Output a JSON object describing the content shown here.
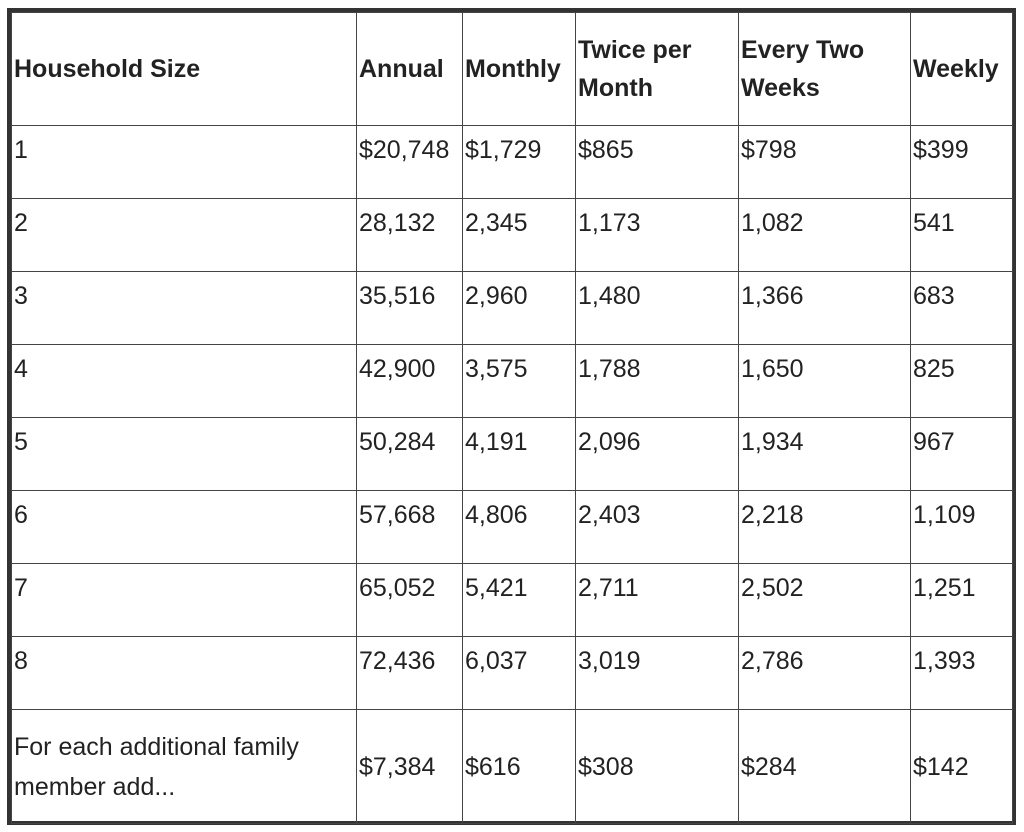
{
  "table": {
    "headers": [
      "Household Size",
      "Annual",
      "Monthly",
      "Twice per Month",
      "Every Two Weeks",
      "Weekly"
    ],
    "rows": [
      [
        "1",
        "$20,748",
        "$1,729",
        "$865",
        "$798",
        "$399"
      ],
      [
        "2",
        "28,132",
        "2,345",
        "1,173",
        "1,082",
        "541"
      ],
      [
        "3",
        "35,516",
        "2,960",
        "1,480",
        "1,366",
        "683"
      ],
      [
        "4",
        "42,900",
        "3,575",
        "1,788",
        "1,650",
        "825"
      ],
      [
        "5",
        "50,284",
        "4,191",
        "2,096",
        "1,934",
        "967"
      ],
      [
        "6",
        "57,668",
        "4,806",
        "2,403",
        "2,218",
        "1,109"
      ],
      [
        "7",
        "65,052",
        "5,421",
        "2,711",
        "2,502",
        "1,251"
      ],
      [
        "8",
        "72,436",
        "6,037",
        "3,019",
        "2,786",
        "1,393"
      ]
    ],
    "footer_row": [
      "For each additional family member add...",
      "$7,384",
      "$616",
      "$308",
      "$284",
      "$142"
    ]
  }
}
